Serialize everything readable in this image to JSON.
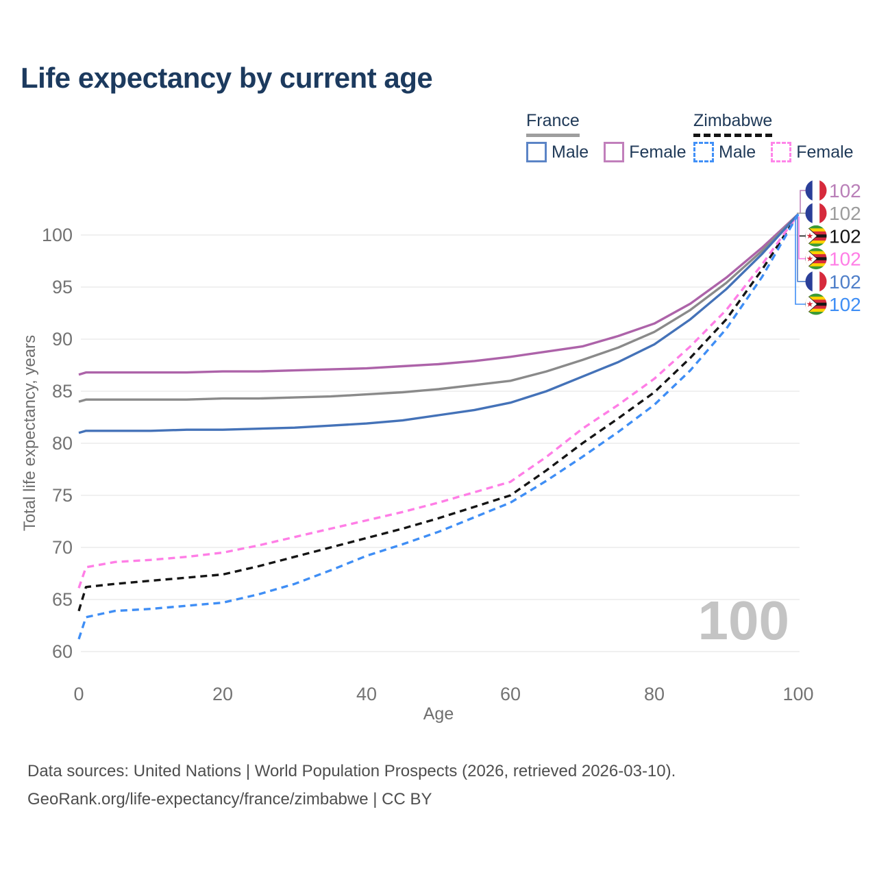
{
  "title": "Life expectancy by current age",
  "watermark": "100",
  "legend": {
    "groups": [
      {
        "label": "France",
        "line_style": "solid",
        "underline_color": "#9e9e9e",
        "items": [
          {
            "label": "Male",
            "color": "#5b84c6"
          },
          {
            "label": "Female",
            "color": "#c17fbb"
          }
        ]
      },
      {
        "label": "Zimbabwe",
        "line_style": "dashed",
        "underline_color": "#141414",
        "items": [
          {
            "label": "Male",
            "color": "#4190f7"
          },
          {
            "label": "Female",
            "color": "#ff85e9"
          }
        ]
      }
    ]
  },
  "footer": {
    "line1": "Data sources: United Nations | World Population Prospects (2026, retrieved 2026-03-10).",
    "line2": "GeoRank.org/life-expectancy/france/zimbabwe | CC BY"
  },
  "chart_data": {
    "type": "line",
    "title": "Life expectancy by current age",
    "xlabel": "Age",
    "ylabel": "Total life expectancy, years",
    "xlim": [
      0,
      100
    ],
    "ylim": [
      58.5,
      102.5
    ],
    "x_ticks": [
      0,
      20,
      40,
      60,
      80,
      100
    ],
    "y_ticks": [
      60,
      65,
      70,
      75,
      80,
      85,
      90,
      95,
      100
    ],
    "grid": "horizontal",
    "legend_position": "top-right",
    "x": [
      0,
      1,
      5,
      10,
      15,
      20,
      25,
      30,
      35,
      40,
      45,
      50,
      55,
      60,
      65,
      70,
      75,
      80,
      85,
      90,
      95,
      100
    ],
    "series": [
      {
        "name": "France Female",
        "country": "France",
        "sex": "Female",
        "flag": "fr",
        "color": "#ad63a9",
        "dash": "solid",
        "end_label": "102",
        "end_label_color": "#b97fb8",
        "label_row": 0,
        "values": [
          86.6,
          86.8,
          86.8,
          86.8,
          86.8,
          86.9,
          86.9,
          87.0,
          87.1,
          87.2,
          87.4,
          87.6,
          87.9,
          88.3,
          88.8,
          89.3,
          90.3,
          91.5,
          93.4,
          95.9,
          98.8,
          102
        ]
      },
      {
        "name": "France",
        "country": "France",
        "sex": "All",
        "flag": "fr",
        "color": "#8a8a8a",
        "dash": "solid",
        "end_label": "102",
        "end_label_color": "#9c9c9c",
        "label_row": 1,
        "values": [
          84.0,
          84.2,
          84.2,
          84.2,
          84.2,
          84.3,
          84.3,
          84.4,
          84.5,
          84.7,
          84.9,
          85.2,
          85.6,
          86.0,
          86.9,
          88.0,
          89.2,
          90.7,
          92.8,
          95.4,
          98.5,
          102
        ]
      },
      {
        "name": "Zimbabwe",
        "country": "Zimbabwe",
        "sex": "All",
        "flag": "zw",
        "color": "#151515",
        "dash": "dashed",
        "end_label": "102",
        "end_label_color": "#141414",
        "label_row": 2,
        "values": [
          63.9,
          66.2,
          66.5,
          66.8,
          67.1,
          67.4,
          68.2,
          69.1,
          70.0,
          70.9,
          71.8,
          72.8,
          73.9,
          75.0,
          77.4,
          80.0,
          82.4,
          84.9,
          88.2,
          91.9,
          96.7,
          102
        ]
      },
      {
        "name": "Zimbabwe Female",
        "country": "Zimbabwe",
        "sex": "Female",
        "flag": "zw",
        "color": "#ff7ee6",
        "dash": "dashed",
        "end_label": "102",
        "end_label_color": "#ff7ee6",
        "label_row": 3,
        "values": [
          66.1,
          68.1,
          68.6,
          68.8,
          69.1,
          69.5,
          70.2,
          71.0,
          71.8,
          72.6,
          73.4,
          74.3,
          75.3,
          76.3,
          78.7,
          81.4,
          83.7,
          86.2,
          89.3,
          92.8,
          97.2,
          102
        ]
      },
      {
        "name": "France Male",
        "country": "France",
        "sex": "Male",
        "flag": "fr",
        "color": "#4472b8",
        "dash": "solid",
        "end_label": "102",
        "end_label_color": "#4f7fc9",
        "label_row": 4,
        "values": [
          81.0,
          81.2,
          81.2,
          81.2,
          81.3,
          81.3,
          81.4,
          81.5,
          81.7,
          81.9,
          82.2,
          82.7,
          83.2,
          83.9,
          85.0,
          86.4,
          87.8,
          89.5,
          91.9,
          94.8,
          98.2,
          102
        ]
      },
      {
        "name": "Zimbabwe Male",
        "country": "Zimbabwe",
        "sex": "Male",
        "flag": "zw",
        "color": "#3f8ef5",
        "dash": "dashed",
        "end_label": "102",
        "end_label_color": "#3f8ef5",
        "label_row": 5,
        "values": [
          61.2,
          63.3,
          63.9,
          64.1,
          64.4,
          64.7,
          65.5,
          66.5,
          67.8,
          69.2,
          70.3,
          71.5,
          72.9,
          74.3,
          76.4,
          78.7,
          81.1,
          83.7,
          87.0,
          91.0,
          96.0,
          102
        ]
      }
    ]
  }
}
